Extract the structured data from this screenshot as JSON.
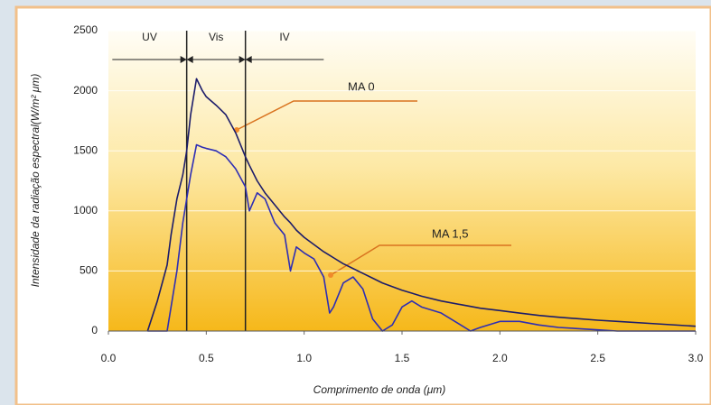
{
  "chart_data": {
    "type": "line",
    "x_label": "Comprimento de onda (μm)",
    "y_label": "Intensidade da radiação espectral(W/m² μm)",
    "x": [
      0.2,
      0.25,
      0.3,
      0.32,
      0.35,
      0.38,
      0.4,
      0.42,
      0.45,
      0.48,
      0.5,
      0.55,
      0.6,
      0.65,
      0.7,
      0.72,
      0.76,
      0.8,
      0.85,
      0.9,
      0.93,
      0.96,
      1.0,
      1.05,
      1.1,
      1.13,
      1.15,
      1.2,
      1.25,
      1.3,
      1.35,
      1.4,
      1.45,
      1.5,
      1.55,
      1.6,
      1.7,
      1.8,
      1.85,
      1.9,
      2.0,
      2.1,
      2.2,
      2.3,
      2.5,
      2.6,
      2.8,
      3.0
    ],
    "series": [
      {
        "name": "MA 0",
        "color": "#1c1c6a",
        "values": [
          0,
          250,
          550,
          800,
          1100,
          1300,
          1500,
          1800,
          2100,
          2000,
          1950,
          1880,
          1800,
          1650,
          1450,
          1380,
          1250,
          1150,
          1050,
          950,
          900,
          840,
          780,
          720,
          660,
          630,
          610,
          560,
          520,
          480,
          440,
          400,
          370,
          340,
          315,
          290,
          250,
          220,
          205,
          190,
          170,
          150,
          130,
          115,
          90,
          80,
          60,
          40
        ]
      },
      {
        "name": "MA 1,5",
        "color": "#2e2eb4",
        "values": [
          0,
          0,
          0,
          200,
          500,
          900,
          1100,
          1300,
          1550,
          1530,
          1520,
          1500,
          1450,
          1350,
          1200,
          1000,
          1150,
          1100,
          900,
          800,
          500,
          700,
          650,
          600,
          450,
          150,
          200,
          400,
          450,
          350,
          100,
          0,
          50,
          200,
          250,
          200,
          150,
          50,
          0,
          30,
          80,
          80,
          50,
          30,
          10,
          0,
          0,
          0
        ]
      }
    ],
    "bands": [
      {
        "label": "UV",
        "xlim": [
          0.02,
          0.4
        ]
      },
      {
        "label": "Vis",
        "xlim": [
          0.4,
          0.7
        ]
      },
      {
        "label": "IV",
        "xlim": [
          0.7,
          1.1
        ]
      }
    ],
    "xlim": [
      0,
      3
    ],
    "ylim": [
      0,
      2500
    ],
    "xticks": [
      {
        "value": 0,
        "label": "0.0"
      },
      0.5,
      {
        "value": 1,
        "label": "1.0"
      },
      1.5,
      {
        "value": 2,
        "label": "2.0"
      },
      2.5,
      {
        "value": 3,
        "label": "3.0"
      }
    ],
    "yticks": [
      0,
      500,
      1000,
      1500,
      2000,
      2500
    ],
    "grid": true,
    "grid_color": "#ffffff"
  }
}
